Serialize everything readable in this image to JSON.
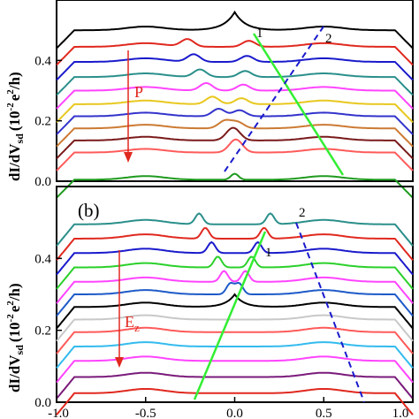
{
  "colors": {
    "curves": [
      "#000000",
      "#e0281e",
      "#1a1acc",
      "#2a8f8a",
      "#ff44ff",
      "#e8c81e",
      "#3333cc",
      "#cc7a33",
      "#7a1a1a",
      "#ff5a5a",
      "#1e9a1e"
    ],
    "curves_b": [
      "#2a8f8a",
      "#e0281e",
      "#1a1acc",
      "#2ad02a",
      "#ff44ff",
      "#1e5ac8",
      "#000000",
      "#c8c8c8",
      "#ff5a5a",
      "#33bbee",
      "#ff44ff",
      "#7a1a7a",
      "#e0281e"
    ],
    "green_line": "#33ee33",
    "blue_dash": "#1a1acc",
    "arrow": "#e0281e"
  },
  "chart_data": [
    {
      "type": "line",
      "panel": "a",
      "ylabel": "dI/dV_sd (10^-2 e^2/h)",
      "ylabel_text": "dI/dV",
      "ylabel_sub": "sd",
      "ylabel_paren": "(10",
      "ylabel_exp1": "-2",
      "ylabel_mid": "e",
      "ylabel_exp2": "2",
      "ylabel_end": "/h)",
      "xlim": [
        -1.0,
        1.0
      ],
      "ylim": [
        0.0,
        0.6
      ],
      "ytick_labels": [
        "0.0",
        "0.2",
        "0.4"
      ],
      "yticks": [
        0.0,
        0.2,
        0.4
      ],
      "arrow_label": "P",
      "line_labels": [
        "1",
        "2"
      ],
      "series_count": 11,
      "baselines": [
        0.5,
        0.445,
        0.395,
        0.345,
        0.3,
        0.255,
        0.215,
        0.175,
        0.135,
        0.095,
        0.005
      ]
    },
    {
      "type": "line",
      "panel": "b",
      "panel_label": "(b)",
      "ylabel_text": "dI/dV",
      "ylabel_sub": "sd",
      "ylabel_paren": "(10",
      "ylabel_exp1": "-2",
      "ylabel_mid": "e",
      "ylabel_exp2": "2",
      "ylabel_end": "/h)",
      "xlim": [
        -1.0,
        1.0
      ],
      "ylim": [
        0.0,
        0.6
      ],
      "xtick_labels": [
        "-1.0",
        "-0.5",
        "0.0",
        "0.5",
        "1.0"
      ],
      "xticks": [
        -1.0,
        -0.5,
        0.0,
        0.5,
        1.0
      ],
      "ytick_labels": [
        "0.0",
        "0.2",
        "0.4"
      ],
      "yticks": [
        0.0,
        0.2,
        0.4
      ],
      "arrow_label": "E",
      "arrow_label_sub": "z",
      "line_labels": [
        "1",
        "2"
      ],
      "series_count": 13,
      "baselines": [
        0.495,
        0.455,
        0.415,
        0.375,
        0.335,
        0.3,
        0.265,
        0.23,
        0.195,
        0.155,
        0.115,
        0.07,
        0.025
      ]
    }
  ]
}
